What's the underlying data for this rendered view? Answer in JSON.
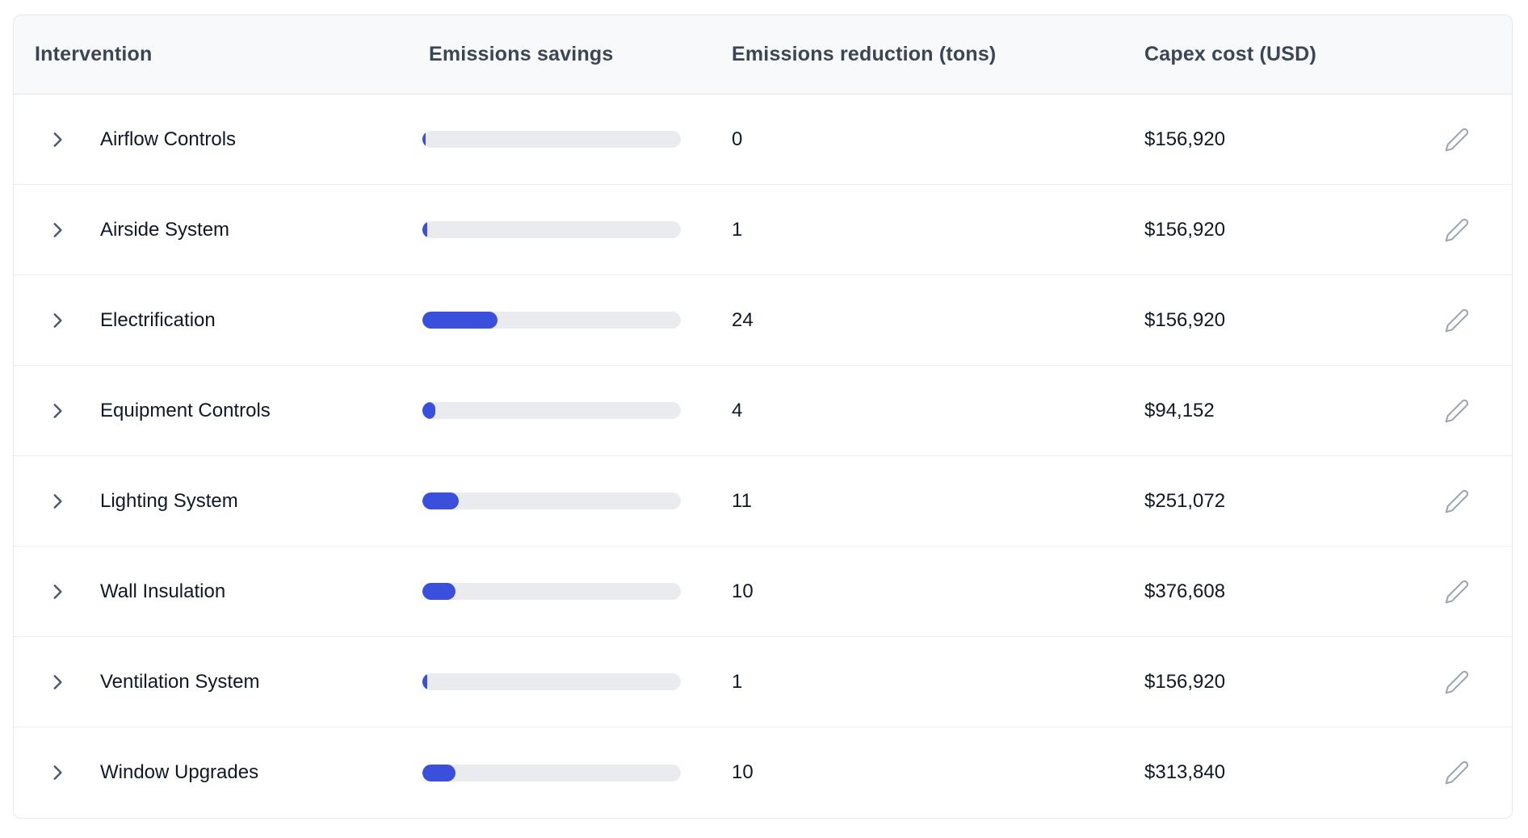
{
  "table": {
    "columns": [
      {
        "label": "Intervention"
      },
      {
        "label": "Emissions savings"
      },
      {
        "label": "Emissions reduction (tons)"
      },
      {
        "label": "Capex cost (USD)"
      }
    ],
    "rows": [
      {
        "name": "Airflow Controls",
        "reduction": "0",
        "capex": "$156,920",
        "bar_percent": 1.2
      },
      {
        "name": "Airside System",
        "reduction": "1",
        "capex": "$156,920",
        "bar_percent": 1.9
      },
      {
        "name": "Electrification",
        "reduction": "24",
        "capex": "$156,920",
        "bar_percent": 29
      },
      {
        "name": "Equipment Controls",
        "reduction": "4",
        "capex": "$94,152",
        "bar_percent": 5
      },
      {
        "name": "Lighting System",
        "reduction": "11",
        "capex": "$251,072",
        "bar_percent": 14
      },
      {
        "name": "Wall Insulation",
        "reduction": "10",
        "capex": "$376,608",
        "bar_percent": 12.8
      },
      {
        "name": "Ventilation System",
        "reduction": "1",
        "capex": "$156,920",
        "bar_percent": 1.9
      },
      {
        "name": "Window Upgrades",
        "reduction": "10",
        "capex": "$313,840",
        "bar_percent": 12.8
      }
    ],
    "icons": {
      "row_expand": "chevron-right-icon",
      "row_edit": "pencil-icon"
    },
    "colors": {
      "bar_fill": "#3a50dc",
      "bar_track": "#e9ebee",
      "header_bg": "#f8f9fb",
      "border": "#e4e7ec",
      "header_text": "#3b4554",
      "body_text": "#101828",
      "chevron": "#4d5a6e",
      "pencil": "#9aa4b2"
    }
  }
}
